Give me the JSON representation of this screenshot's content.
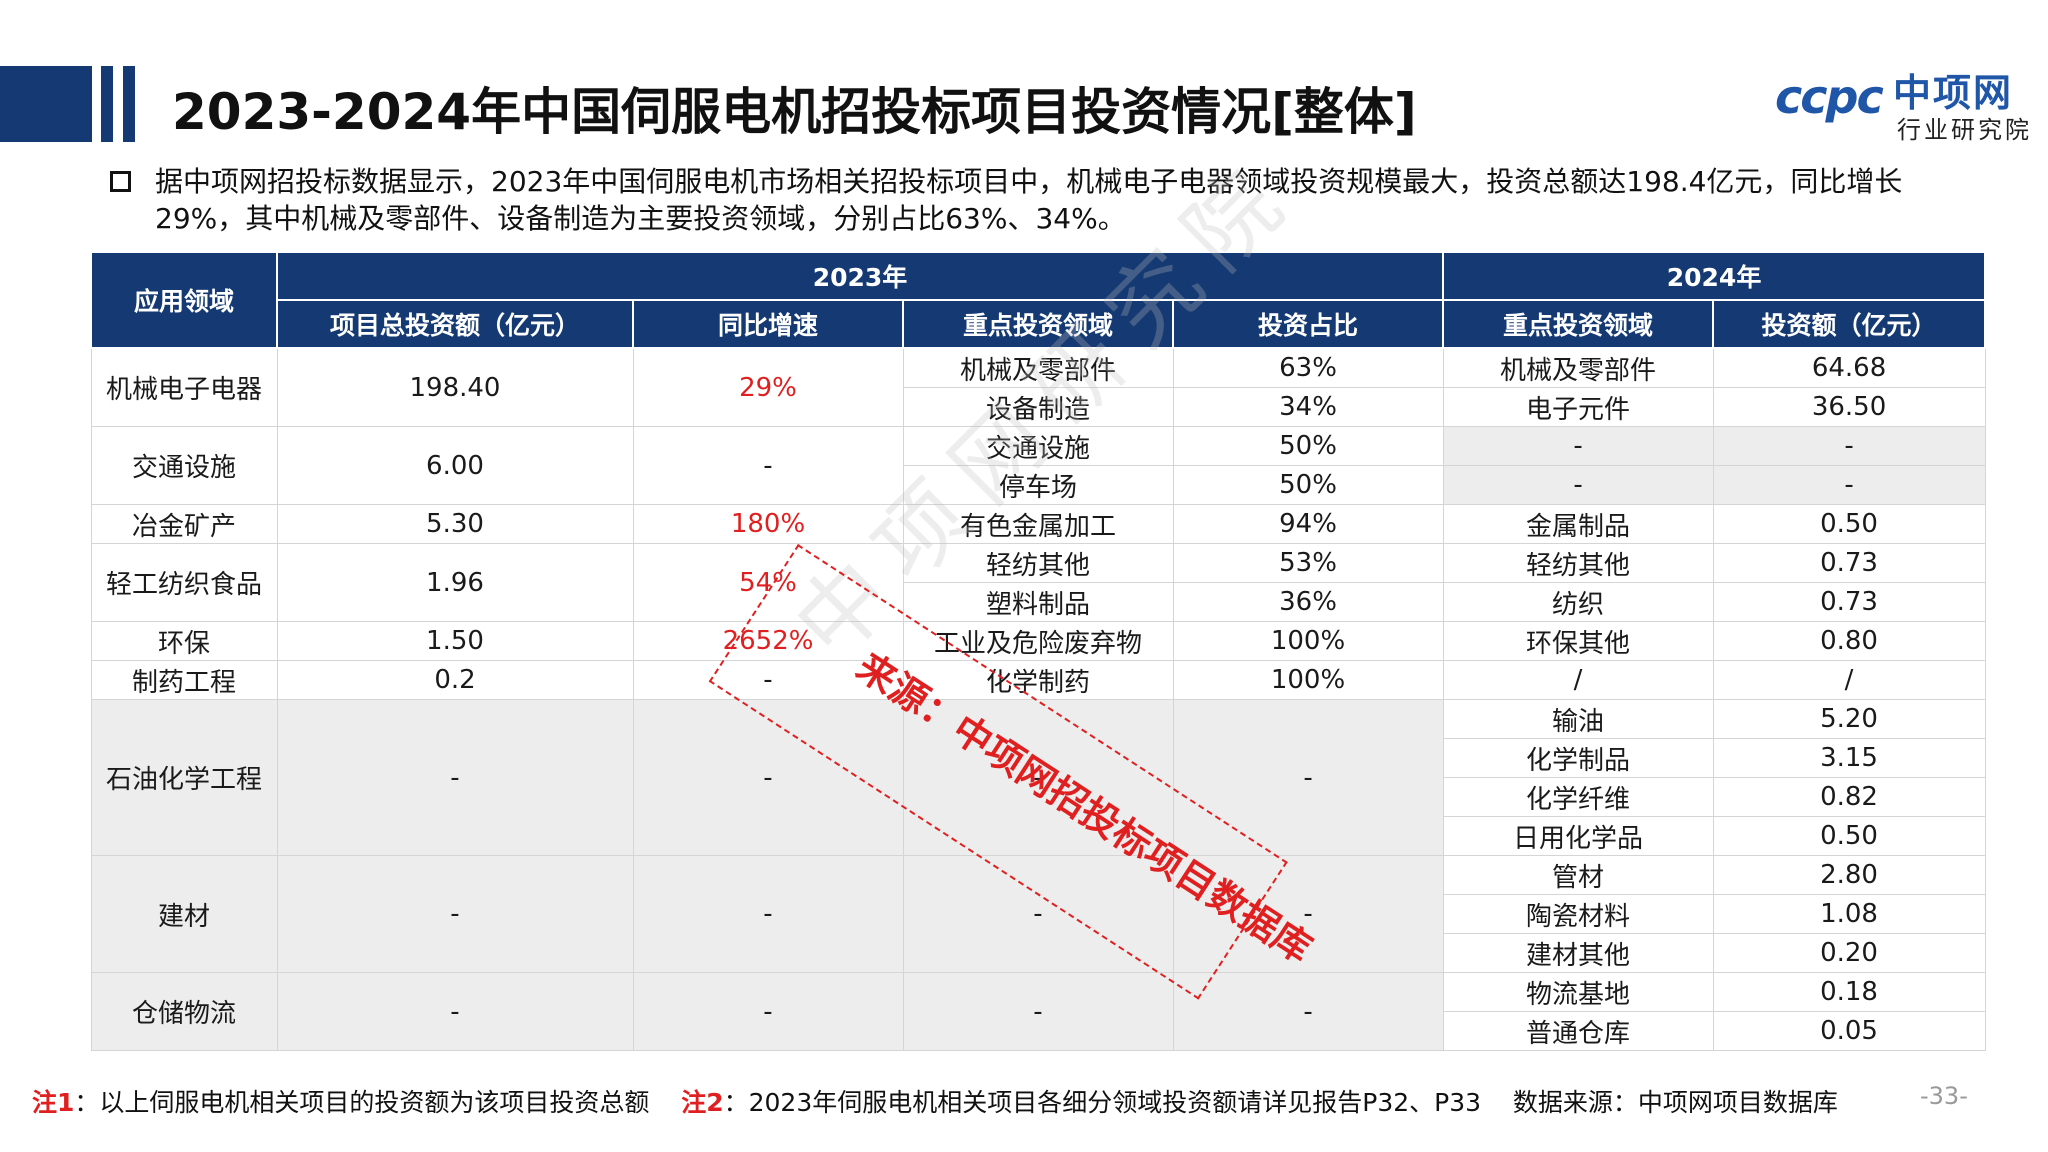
{
  "header": {
    "title": "2023-2024年中国伺服电机招投标项目投资情况[整体]"
  },
  "logo": {
    "mark": "ccpc",
    "name": "中项网",
    "sub": "行业研究院"
  },
  "summary": "据中项网招投标数据显示，2023年中国伺服电机市场相关招投标项目中，机械电子电器领域投资规模最大，投资总额达198.4亿元，同比增长29%，其中机械及零部件、设备制造为主要投资领域，分别占比63%、34%。",
  "table": {
    "h_field": "应用领域",
    "h_2023": "2023年",
    "h_2024": "2024年",
    "h_total": "项目总投资额（亿元）",
    "h_growth": "同比增速",
    "h_focus23": "重点投资领域",
    "h_share": "投资占比",
    "h_focus24": "重点投资领域",
    "h_amount": "投资额（亿元）",
    "r1": {
      "field": "机械电子电器",
      "total": "198.40",
      "growth": "29%",
      "a": [
        "机械及零部件",
        "63%",
        "机械及零部件",
        "64.68"
      ],
      "b": [
        "设备制造",
        "34%",
        "电子元件",
        "36.50"
      ]
    },
    "r2": {
      "field": "交通设施",
      "total": "6.00",
      "growth": "-",
      "a": [
        "交通设施",
        "50%",
        "-",
        "-"
      ],
      "b": [
        "停车场",
        "50%",
        "-",
        "-"
      ]
    },
    "r3": {
      "field": "冶金矿产",
      "total": "5.30",
      "growth": "180%",
      "a": [
        "有色金属加工",
        "94%",
        "金属制品",
        "0.50"
      ]
    },
    "r4": {
      "field": "轻工纺织食品",
      "total": "1.96",
      "growth": "54%",
      "a": [
        "轻纺其他",
        "53%",
        "轻纺其他",
        "0.73"
      ],
      "b": [
        "塑料制品",
        "36%",
        "纺织",
        "0.73"
      ]
    },
    "r5": {
      "field": "环保",
      "total": "1.50",
      "growth": "2652%",
      "a": [
        "工业及危险废弃物",
        "100%",
        "环保其他",
        "0.80"
      ]
    },
    "r6": {
      "field": "制药工程",
      "total": "0.2",
      "growth": "-",
      "a": [
        "化学制药",
        "100%",
        "/",
        "/"
      ]
    },
    "r7": {
      "field": "石油化学工程",
      "total": "-",
      "growth": "-",
      "focus": "-",
      "share": "-",
      "rows": [
        [
          "输油",
          "5.20"
        ],
        [
          "化学制品",
          "3.15"
        ],
        [
          "化学纤维",
          "0.82"
        ],
        [
          "日用化学品",
          "0.50"
        ]
      ]
    },
    "r8": {
      "field": "建材",
      "total": "-",
      "growth": "-",
      "focus": "-",
      "share": "-",
      "rows": [
        [
          "管材",
          "2.80"
        ],
        [
          "陶瓷材料",
          "1.08"
        ],
        [
          "建材其他",
          "0.20"
        ]
      ]
    },
    "r9": {
      "field": "仓储物流",
      "total": "-",
      "growth": "-",
      "focus": "-",
      "share": "-",
      "rows": [
        [
          "物流基地",
          "0.18"
        ],
        [
          "普通仓库",
          "0.05"
        ]
      ]
    }
  },
  "stamp": "来源：中项网招投标项目数据库",
  "watermark": "中项网研究院",
  "footer": {
    "n1": "注1",
    "t1": "：以上伺服电机相关项目的投资额为该项目投资总额",
    "n2": "注2",
    "t2": "：2023年伺服电机相关项目各细分领域投资额请详见报告P32、P33",
    "src": "数据来源：中项网项目数据库"
  },
  "page_no": "-33-"
}
